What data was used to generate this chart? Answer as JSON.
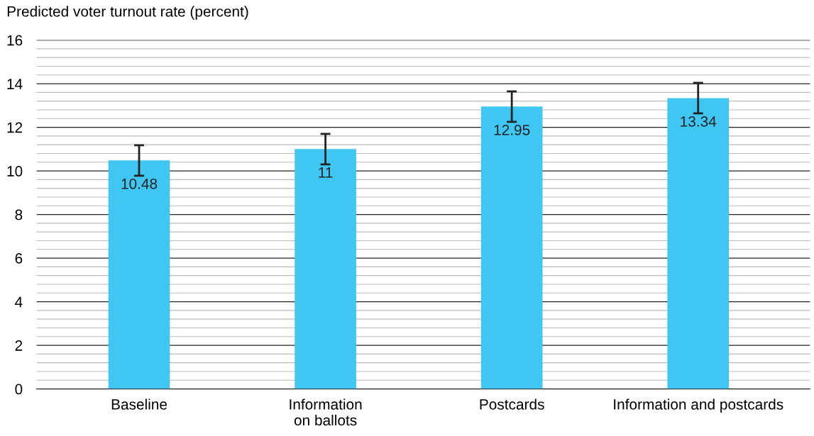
{
  "chart_data": {
    "type": "bar",
    "ylabel": "Predicted voter turnout rate (percent)",
    "categories": [
      "Baseline",
      "Information\non ballots",
      "Postcards",
      "Information and postcards"
    ],
    "values": [
      10.48,
      11,
      12.95,
      13.34
    ],
    "errors": [
      0.7,
      0.7,
      0.7,
      0.7
    ],
    "color": "#40c6f2",
    "data_labels": true,
    "ylim": [
      0,
      16
    ],
    "yticks": [
      0,
      {
        "value": 0.4,
        "label": null
      },
      {
        "value": 0.8,
        "label": null
      },
      {
        "value": 1.2,
        "label": null
      },
      {
        "value": 1.6,
        "label": null
      },
      2,
      {
        "value": 2.4,
        "label": null
      },
      {
        "value": 2.8,
        "label": null
      },
      {
        "value": 3.2,
        "label": null
      },
      {
        "value": 3.6,
        "label": null
      },
      4,
      {
        "value": 4.4,
        "label": null
      },
      {
        "value": 4.8,
        "label": null
      },
      {
        "value": 5.2,
        "label": null
      },
      {
        "value": 5.6,
        "label": null
      },
      6,
      {
        "value": 6.4,
        "label": null
      },
      {
        "value": 6.8,
        "label": null
      },
      {
        "value": 7.2,
        "label": null
      },
      {
        "value": 7.6,
        "label": null
      },
      8,
      {
        "value": 8.4,
        "label": null
      },
      {
        "value": 8.8,
        "label": null
      },
      {
        "value": 9.2,
        "label": null
      },
      {
        "value": 9.6,
        "label": null
      },
      10,
      {
        "value": 10.4,
        "label": null
      },
      {
        "value": 10.8,
        "label": null
      },
      {
        "value": 11.2,
        "label": null
      },
      {
        "value": 11.6,
        "label": null
      },
      12,
      {
        "value": 12.4,
        "label": null
      },
      {
        "value": 12.8,
        "label": null
      },
      {
        "value": 13.2,
        "label": null
      },
      {
        "value": 13.6,
        "label": null
      },
      14,
      {
        "value": 14.4,
        "label": null
      },
      {
        "value": 14.8,
        "label": null
      },
      {
        "value": 15.2,
        "label": null
      },
      {
        "value": 15.6,
        "label": null
      },
      16
    ],
    "grid": "y"
  }
}
